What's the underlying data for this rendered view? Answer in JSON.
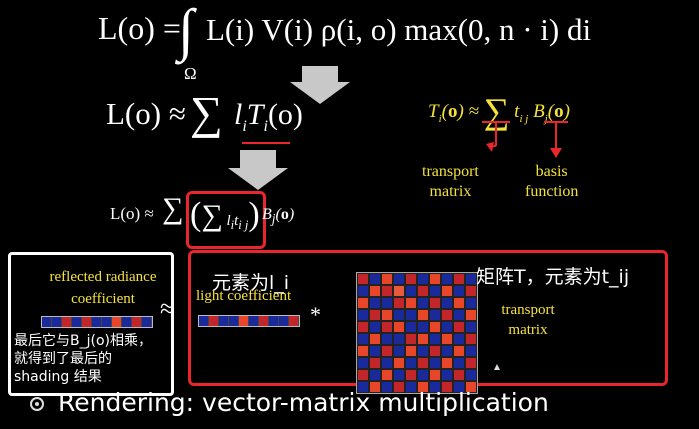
{
  "equations": {
    "rendering_eq": "L(o) = ∫ L(i) V(i) ρ(i, o) max(0, n · i) di",
    "rendering_eq_lhs": "L(o) =",
    "rendering_eq_body": "L(i) V(i) ρ(i, o) max(0, n · i) di",
    "integral_domain": "Ω",
    "approx_eq_lhs": "L(o) ≈",
    "approx_eq_term": "l",
    "approx_eq_term2": "T",
    "approx_eq_arg": "(o)",
    "transport_eq": "T_i(o) ≈ Σ t_ij B_j(o)",
    "final_eq_lhs": "L(o) ≈",
    "final_eq_rhs": "B_j(o)"
  },
  "labels": {
    "transport_matrix": "transport\nmatrix",
    "transport_matrix_l1": "transport",
    "transport_matrix_l2": "matrix",
    "basis_function_l1": "basis",
    "basis_function_l2": "function",
    "reflected_radiance_l1": "reflected radiance",
    "reflected_radiance_l2": "coefficient",
    "light_coefficient": "light coefficient",
    "transport_matrix_box_l1": "transport",
    "transport_matrix_box_l2": "matrix",
    "approx_symbol": "≈",
    "times_symbol": "*"
  },
  "annotations": {
    "element_li": "元素为l_i",
    "matrix_t": "矩阵T，元素为t_ij",
    "note_l1": "最后它与B_j(o)相乘，",
    "note_l2": "就得到了最后的",
    "note_l3": "shading 结果"
  },
  "bullet": {
    "icon": "circle-bullet-icon",
    "text": "Rendering: vector-matrix multiplication"
  },
  "colors": {
    "background": "#000000",
    "highlight_red": "#e8262b",
    "yellow_text": "#f5e23b",
    "arrow_gray": "#c8c8c8"
  },
  "vectors": {
    "reflected": [
      "#1a2a9a",
      "#1a2a9a",
      "#c2262b",
      "#1a2a9a",
      "#c2262b",
      "#1a2a9a",
      "#1a2a9a",
      "#e8462b",
      "#1a2a9a",
      "#c2262b",
      "#1a2a9a"
    ],
    "light": [
      "#1a2a9a",
      "#c2262b",
      "#1a2a9a",
      "#1a2a9a",
      "#e8462b",
      "#1a2a9a",
      "#c2262b",
      "#1a2a9a",
      "#1a2a9a",
      "#c2262b"
    ]
  },
  "matrix": [
    [
      "#c2262b",
      "#1a2a9a",
      "#e8462b",
      "#1a2a9a",
      "#c2262b",
      "#1a2a9a",
      "#e8462b",
      "#1a2a9a",
      "#c2262b",
      "#1a2a9a"
    ],
    [
      "#1a2a9a",
      "#e8462b",
      "#c2262b",
      "#e85a3a",
      "#1a2a9a",
      "#c2262b",
      "#1a2a9a",
      "#e8462b",
      "#1a2a9a",
      "#c2262b"
    ],
    [
      "#e8462b",
      "#1a2a9a",
      "#1a2a9a",
      "#c2262b",
      "#e8462b",
      "#1a2a9a",
      "#c2262b",
      "#1a2a9a",
      "#e8462b",
      "#1a2a9a"
    ],
    [
      "#1a2a9a",
      "#c2262b",
      "#e8462b",
      "#1a2a9a",
      "#1a2a9a",
      "#e8462b",
      "#1a2a9a",
      "#c2262b",
      "#1a2a9a",
      "#e8462b"
    ],
    [
      "#c2262b",
      "#1a2a9a",
      "#c2262b",
      "#e8462b",
      "#1a2a9a",
      "#1a2a9a",
      "#e8462b",
      "#1a2a9a",
      "#c2262b",
      "#1a2a9a"
    ],
    [
      "#1a2a9a",
      "#e8462b",
      "#1a2a9a",
      "#1a2a9a",
      "#c2262b",
      "#e8462b",
      "#1a2a9a",
      "#e8462b",
      "#1a2a9a",
      "#c2262b"
    ],
    [
      "#e8462b",
      "#1a2a9a",
      "#c2262b",
      "#1a2a9a",
      "#e8462b",
      "#1a2a9a",
      "#c2262b",
      "#1a2a9a",
      "#e8462b",
      "#1a2a9a"
    ],
    [
      "#1a2a9a",
      "#c2262b",
      "#1a2a9a",
      "#e8462b",
      "#1a2a9a",
      "#c2262b",
      "#1a2a9a",
      "#e8462b",
      "#1a2a9a",
      "#c2262b"
    ],
    [
      "#c2262b",
      "#1a2a9a",
      "#e8462b",
      "#1a2a9a",
      "#c2262b",
      "#1a2a9a",
      "#e8462b",
      "#1a2a9a",
      "#c2262b",
      "#1a2a9a"
    ],
    [
      "#1a2a9a",
      "#e8462b",
      "#1a2a9a",
      "#c2262b",
      "#1a2a9a",
      "#e8462b",
      "#1a2a9a",
      "#c2262b",
      "#1a2a9a",
      "#e8462b"
    ]
  ]
}
